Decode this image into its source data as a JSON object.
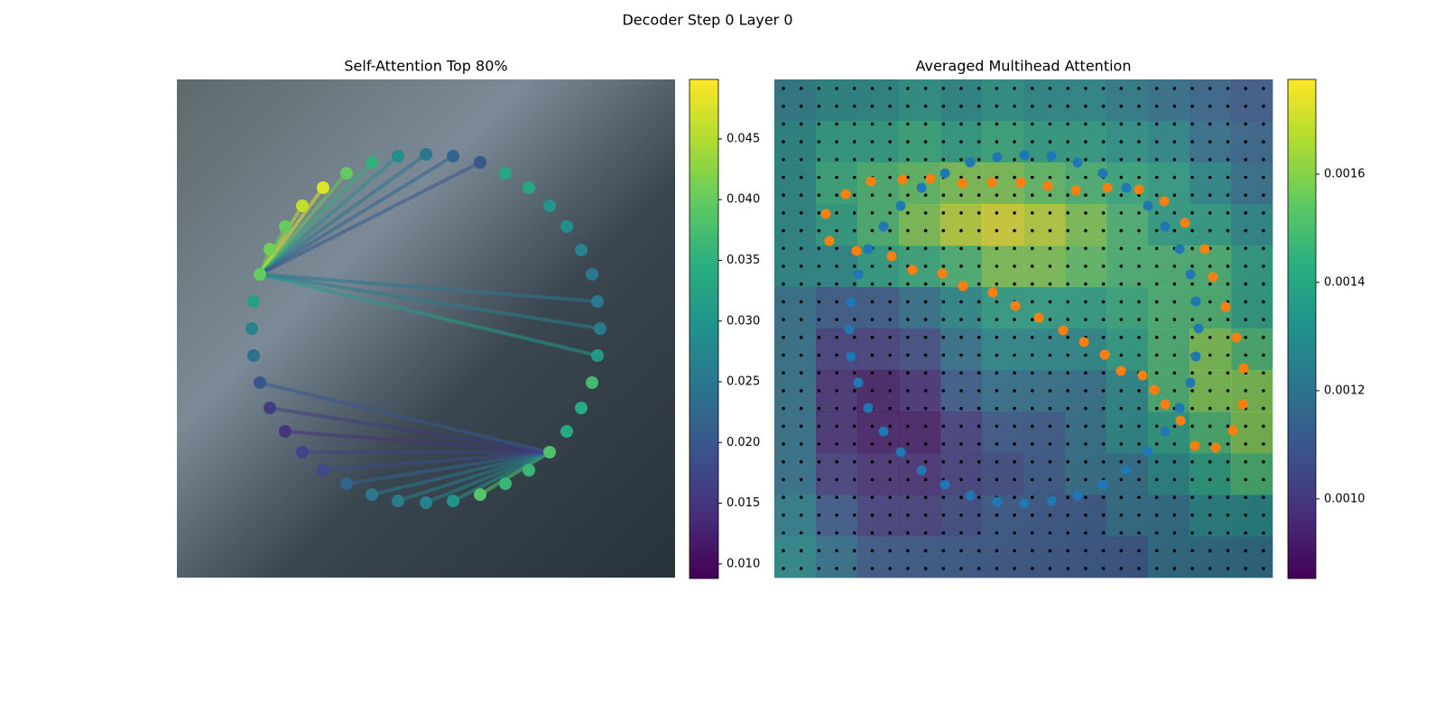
{
  "title": "Decoder Step 0 Layer 0",
  "chart_data": [
    {
      "type": "scatter",
      "title": "Self-Attention Top 80%",
      "cmap": "viridis",
      "xlim": [
        0,
        552
      ],
      "ylim": [
        552,
        0
      ],
      "x": [
        276,
        306,
        336,
        364,
        390,
        413,
        432,
        448,
        460,
        466,
        469,
        466,
        460,
        448,
        432,
        413,
        390,
        364,
        336,
        306,
        276,
        245,
        216,
        188,
        162,
        139,
        120,
        103,
        92,
        85,
        83,
        85,
        92,
        103,
        120,
        139,
        162,
        188,
        216,
        245
      ],
      "y": [
        83,
        85,
        92,
        104,
        120,
        140,
        163,
        189,
        216,
        246,
        276,
        306,
        336,
        364,
        390,
        413,
        433,
        448,
        460,
        467,
        469,
        467,
        460,
        448,
        433,
        413,
        390,
        364,
        336,
        306,
        276,
        246,
        216,
        188,
        163,
        140,
        120,
        104,
        92,
        85
      ],
      "values": [
        0.025,
        0.022,
        0.02,
        0.033,
        0.033,
        0.03,
        0.029,
        0.027,
        0.025,
        0.025,
        0.026,
        0.031,
        0.037,
        0.034,
        0.034,
        0.038,
        0.036,
        0.036,
        0.039,
        0.03,
        0.027,
        0.026,
        0.025,
        0.022,
        0.018,
        0.017,
        0.015,
        0.016,
        0.02,
        0.024,
        0.027,
        0.032,
        0.04,
        0.041,
        0.04,
        0.046,
        0.048,
        0.04,
        0.035,
        0.029
      ],
      "edges": [
        [
          32,
          33
        ],
        [
          32,
          34
        ],
        [
          32,
          35
        ],
        [
          32,
          36
        ],
        [
          32,
          37
        ],
        [
          32,
          38
        ],
        [
          32,
          39
        ],
        [
          32,
          0
        ],
        [
          32,
          1
        ],
        [
          32,
          2
        ],
        [
          32,
          9
        ],
        [
          32,
          10
        ],
        [
          32,
          11
        ],
        [
          15,
          18
        ],
        [
          15,
          19
        ],
        [
          15,
          20
        ],
        [
          15,
          21
        ],
        [
          15,
          22
        ],
        [
          15,
          23
        ],
        [
          15,
          24
        ],
        [
          15,
          25
        ],
        [
          15,
          26
        ],
        [
          15,
          27
        ],
        [
          15,
          28
        ]
      ],
      "clim": [
        0.0088,
        0.0499
      ],
      "cticks": [
        {
          "value": 0.01,
          "label": "0.010"
        },
        0.015,
        {
          "value": 0.02,
          "label": "0.020"
        },
        0.025,
        {
          "value": 0.03,
          "label": "0.030"
        },
        0.035,
        {
          "value": 0.04,
          "label": "0.040"
        },
        0.045
      ]
    },
    {
      "type": "heatmap",
      "title": "Averaged Multihead Attention",
      "cmap": "viridis",
      "xlim": [
        0,
        552
      ],
      "ylim": [
        552,
        0
      ],
      "heatmap": [
        [
          0.00125,
          0.0013,
          0.0013,
          0.00135,
          0.0013,
          0.00135,
          0.0013,
          0.0013,
          0.00125,
          0.0012,
          0.00115,
          0.0011
        ],
        [
          0.0013,
          0.0014,
          0.0014,
          0.00145,
          0.0014,
          0.00145,
          0.0014,
          0.0014,
          0.00135,
          0.0013,
          0.0012,
          0.00115
        ],
        [
          0.0013,
          0.00145,
          0.0015,
          0.00155,
          0.0016,
          0.0016,
          0.00155,
          0.0015,
          0.00145,
          0.0014,
          0.0013,
          0.0012
        ],
        [
          0.0013,
          0.0014,
          0.0015,
          0.0016,
          0.0017,
          0.00175,
          0.0017,
          0.0016,
          0.0015,
          0.0014,
          0.0014,
          0.0013
        ],
        [
          0.0013,
          0.0013,
          0.0014,
          0.00145,
          0.0015,
          0.0016,
          0.0016,
          0.00155,
          0.0015,
          0.0015,
          0.0015,
          0.0014
        ],
        [
          0.0012,
          0.0011,
          0.0011,
          0.0012,
          0.0013,
          0.0014,
          0.0014,
          0.0014,
          0.00145,
          0.0015,
          0.0015,
          0.0014
        ],
        [
          0.0012,
          0.001,
          0.001,
          0.00105,
          0.0012,
          0.0013,
          0.0013,
          0.0013,
          0.0014,
          0.0015,
          0.0016,
          0.0015
        ],
        [
          0.0012,
          0.00095,
          0.0009,
          0.00095,
          0.0011,
          0.0012,
          0.0012,
          0.0012,
          0.0013,
          0.0015,
          0.0016,
          0.0016
        ],
        [
          0.0012,
          0.00095,
          0.0009,
          0.0009,
          0.001,
          0.0011,
          0.0011,
          0.0012,
          0.0013,
          0.0014,
          0.0015,
          0.0016
        ],
        [
          0.0012,
          0.001,
          0.00095,
          0.00095,
          0.001,
          0.00105,
          0.0011,
          0.0012,
          0.0012,
          0.0013,
          0.0014,
          0.0015
        ],
        [
          0.00125,
          0.0011,
          0.001,
          0.001,
          0.00105,
          0.0011,
          0.0011,
          0.0011,
          0.0012,
          0.0012,
          0.0013,
          0.0013
        ],
        [
          0.0013,
          0.0012,
          0.0011,
          0.0011,
          0.0011,
          0.0011,
          0.0011,
          0.0011,
          0.0011,
          0.0012,
          0.0012,
          0.0012
        ]
      ],
      "clim": [
        0.000853,
        0.001775
      ],
      "cticks": [
        {
          "value": 0.001,
          "label": "0.0010"
        },
        0.0012,
        0.0014,
        0.0016
      ],
      "series": [
        {
          "color": "#1f77b4",
          "x": [
            217,
            247,
            277,
            307,
            336,
            364,
            390,
            414,
            433,
            449,
            461,
            467,
            470,
            467,
            461,
            449,
            433,
            414,
            390,
            364,
            336,
            307,
            277,
            247,
            217,
            189,
            163,
            140,
            121,
            104,
            93,
            85,
            83,
            85,
            93,
            104,
            121,
            140,
            163,
            189
          ],
          "y": [
            92,
            86,
            84,
            85,
            92,
            104,
            120,
            140,
            163,
            188,
            216,
            246,
            276,
            307,
            336,
            364,
            390,
            412,
            433,
            449,
            461,
            467,
            470,
            468,
            461,
            449,
            433,
            413,
            390,
            364,
            336,
            307,
            277,
            247,
            216,
            188,
            163,
            140,
            120,
            104
          ]
        },
        {
          "color": "#ff7f0e",
          "x": [
            57,
            79,
            107,
            142,
            173,
            208,
            241,
            273,
            303,
            334,
            369,
            404,
            432,
            455,
            477,
            486,
            500,
            512,
            520,
            519,
            508,
            489,
            466,
            450,
            433,
            421,
            408,
            384,
            366,
            343,
            320,
            293,
            267,
            242,
            209,
            186,
            153,
            130,
            91,
            61
          ],
          "y": [
            149,
            127,
            113,
            111,
            110,
            115,
            114,
            114,
            118,
            123,
            120,
            122,
            135,
            159,
            188,
            219,
            252,
            286,
            320,
            360,
            389,
            408,
            406,
            378,
            360,
            344,
            328,
            323,
            305,
            291,
            278,
            264,
            251,
            236,
            229,
            215,
            211,
            196,
            190,
            179
          ]
        }
      ]
    }
  ]
}
